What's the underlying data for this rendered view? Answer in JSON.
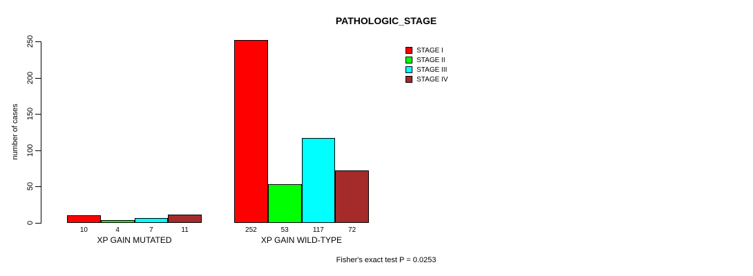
{
  "title": "PATHOLOGIC_STAGE",
  "annotation": "Fisher's exact test P = 0.0253",
  "chart_data": {
    "type": "bar",
    "title": "PATHOLOGIC_STAGE",
    "xlabel": "",
    "ylabel": "number of cases",
    "ylim": [
      0,
      250
    ],
    "yticks": [
      0,
      50,
      100,
      150,
      200,
      250
    ],
    "grid": false,
    "categories": [
      "XP GAIN MUTATED",
      "XP GAIN WILD-TYPE"
    ],
    "series": [
      {
        "name": "STAGE I",
        "color": "#FF0000",
        "values": [
          10,
          252
        ]
      },
      {
        "name": "STAGE II",
        "color": "#00FF00",
        "values": [
          4,
          53
        ]
      },
      {
        "name": "STAGE III",
        "color": "#00FFFF",
        "values": [
          7,
          117
        ]
      },
      {
        "name": "STAGE IV",
        "color": "#A52A2A",
        "values": [
          11,
          72
        ]
      }
    ],
    "bar_value_labels": [
      [
        10,
        4,
        7,
        11
      ],
      [
        252,
        53,
        117,
        72
      ]
    ],
    "legend": {
      "position": "top-right",
      "entries": [
        {
          "label": "STAGE I",
          "color": "#FF0000"
        },
        {
          "label": "STAGE II",
          "color": "#00FF00"
        },
        {
          "label": "STAGE III",
          "color": "#00FFFF"
        },
        {
          "label": "STAGE IV",
          "color": "#A52A2A"
        }
      ]
    },
    "annotation": "Fisher's exact test P = 0.0253"
  }
}
